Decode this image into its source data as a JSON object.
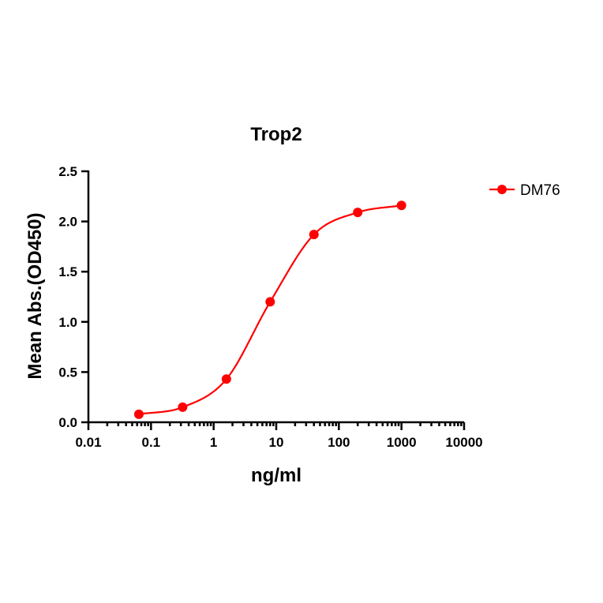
{
  "chart_data": {
    "type": "line",
    "title": "Trop2",
    "xlabel": "ng/ml",
    "ylabel": "Mean Abs.(OD450)",
    "x_scale": "log",
    "xlim": [
      0.01,
      10000
    ],
    "ylim": [
      0,
      2.5
    ],
    "x_ticks": [
      0.01,
      0.1,
      1,
      10,
      100,
      1000,
      10000
    ],
    "x_tick_labels": [
      "0.01",
      "0.1",
      "1",
      "10",
      "100",
      "1000",
      "10000"
    ],
    "y_ticks": [
      0,
      0.5,
      1,
      1.5,
      2,
      2.5
    ],
    "y_tick_labels": [
      "0.0",
      "0.5",
      "1.0",
      "1.5",
      "2.0",
      "2.5"
    ],
    "grid": false,
    "legend_position": "top-right",
    "series": [
      {
        "name": "DM76",
        "color": "#ff0000",
        "marker": "circle",
        "fit": "sigmoidal 4PL curve",
        "x": [
          0.064,
          0.32,
          1.6,
          8,
          40,
          200,
          1000
        ],
        "y": [
          0.08,
          0.15,
          0.43,
          1.2,
          1.87,
          2.09,
          2.16
        ]
      }
    ]
  }
}
